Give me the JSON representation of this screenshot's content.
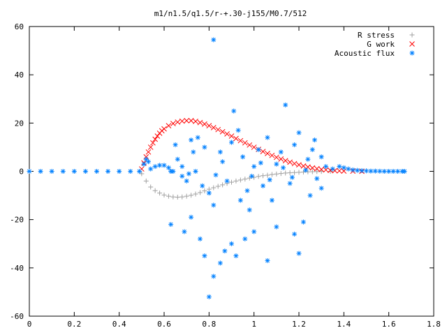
{
  "chart_data": {
    "type": "scatter",
    "title": "m1/n1.5/q1.5/r-+.30-j155/M0.7/512",
    "xlabel": "",
    "ylabel": "",
    "xlim": [
      0,
      1.8
    ],
    "ylim": [
      -60,
      60
    ],
    "xticks": [
      0,
      0.2,
      0.4,
      0.6,
      0.8,
      1,
      1.2,
      1.4,
      1.6,
      1.8
    ],
    "yticks": [
      -60,
      -40,
      -20,
      0,
      20,
      40,
      60
    ],
    "xtick_labels": [
      "0",
      "0.2",
      "0.4",
      "0.6",
      "0.8",
      "1",
      "1.2",
      "1.4",
      "1.6",
      "1.8"
    ],
    "ytick_labels": [
      "-60",
      "-40",
      "-20",
      "0",
      "20",
      "40",
      "60"
    ],
    "grid": false,
    "legend_position": "top-right",
    "series": [
      {
        "name": "R stress",
        "marker": "+",
        "color": "#a0a0a0",
        "points": [
          [
            0.5,
            -1.0
          ],
          [
            0.52,
            -4.0
          ],
          [
            0.54,
            -6.5
          ],
          [
            0.56,
            -8.0
          ],
          [
            0.58,
            -9.0
          ],
          [
            0.6,
            -9.8
          ],
          [
            0.62,
            -10.3
          ],
          [
            0.64,
            -10.6
          ],
          [
            0.66,
            -10.7
          ],
          [
            0.68,
            -10.6
          ],
          [
            0.7,
            -10.3
          ],
          [
            0.72,
            -9.9
          ],
          [
            0.74,
            -9.4
          ],
          [
            0.76,
            -8.8
          ],
          [
            0.78,
            -8.1
          ],
          [
            0.8,
            -7.4
          ],
          [
            0.82,
            -6.8
          ],
          [
            0.84,
            -6.2
          ],
          [
            0.86,
            -5.6
          ],
          [
            0.88,
            -5.0
          ],
          [
            0.9,
            -4.5
          ],
          [
            0.92,
            -4.0
          ],
          [
            0.94,
            -3.6
          ],
          [
            0.96,
            -3.2
          ],
          [
            0.98,
            -2.8
          ],
          [
            1.0,
            -2.5
          ],
          [
            1.02,
            -2.1
          ],
          [
            1.04,
            -1.8
          ],
          [
            1.06,
            -1.6
          ],
          [
            1.08,
            -1.3
          ],
          [
            1.1,
            -1.1
          ],
          [
            1.12,
            -0.9
          ],
          [
            1.14,
            -0.7
          ],
          [
            1.16,
            -0.6
          ],
          [
            1.18,
            -0.5
          ],
          [
            1.2,
            -0.4
          ],
          [
            1.22,
            -0.3
          ],
          [
            1.24,
            -0.2
          ],
          [
            1.26,
            -0.15
          ],
          [
            1.28,
            -0.1
          ],
          [
            1.3,
            -0.05
          ],
          [
            1.34,
            0.0
          ]
        ]
      },
      {
        "name": "G work",
        "marker": "x",
        "color": "#ff0000",
        "points": [
          [
            0.5,
            1.0
          ],
          [
            0.51,
            3.5
          ],
          [
            0.52,
            6.0
          ],
          [
            0.53,
            8.0
          ],
          [
            0.54,
            10.0
          ],
          [
            0.55,
            11.8
          ],
          [
            0.56,
            13.3
          ],
          [
            0.57,
            14.6
          ],
          [
            0.58,
            15.8
          ],
          [
            0.59,
            16.8
          ],
          [
            0.6,
            17.6
          ],
          [
            0.62,
            18.9
          ],
          [
            0.64,
            19.8
          ],
          [
            0.66,
            20.4
          ],
          [
            0.68,
            20.8
          ],
          [
            0.7,
            21.0
          ],
          [
            0.72,
            21.0
          ],
          [
            0.74,
            20.7
          ],
          [
            0.76,
            20.2
          ],
          [
            0.78,
            19.6
          ],
          [
            0.8,
            18.9
          ],
          [
            0.82,
            18.1
          ],
          [
            0.84,
            17.3
          ],
          [
            0.86,
            16.4
          ],
          [
            0.88,
            15.5
          ],
          [
            0.9,
            14.6
          ],
          [
            0.92,
            13.6
          ],
          [
            0.94,
            12.7
          ],
          [
            0.96,
            11.8
          ],
          [
            0.98,
            10.9
          ],
          [
            1.0,
            10.0
          ],
          [
            1.02,
            9.1
          ],
          [
            1.04,
            8.2
          ],
          [
            1.06,
            7.4
          ],
          [
            1.08,
            6.6
          ],
          [
            1.1,
            5.8
          ],
          [
            1.12,
            5.1
          ],
          [
            1.14,
            4.4
          ],
          [
            1.16,
            3.8
          ],
          [
            1.18,
            3.2
          ],
          [
            1.2,
            2.7
          ],
          [
            1.22,
            2.2
          ],
          [
            1.24,
            1.8
          ],
          [
            1.26,
            1.4
          ],
          [
            1.28,
            1.1
          ],
          [
            1.3,
            0.8
          ],
          [
            1.32,
            0.6
          ],
          [
            1.34,
            0.4
          ],
          [
            1.36,
            0.3
          ],
          [
            1.38,
            0.2
          ],
          [
            1.4,
            0.1
          ],
          [
            1.44,
            0.05
          ],
          [
            1.48,
            0.0
          ]
        ]
      },
      {
        "name": "Acoustic flux",
        "marker": "*",
        "color": "#0080ff",
        "points": [
          [
            0.0,
            0.0
          ],
          [
            0.05,
            0.0
          ],
          [
            0.1,
            0.0
          ],
          [
            0.15,
            0.0
          ],
          [
            0.2,
            0.0
          ],
          [
            0.25,
            0.0
          ],
          [
            0.3,
            0.0
          ],
          [
            0.35,
            0.0
          ],
          [
            0.4,
            0.0
          ],
          [
            0.45,
            0.0
          ],
          [
            0.49,
            0.0
          ],
          [
            0.51,
            3.0
          ],
          [
            0.52,
            5.0
          ],
          [
            0.53,
            4.0
          ],
          [
            0.54,
            1.0
          ],
          [
            0.56,
            2.0
          ],
          [
            0.58,
            2.5
          ],
          [
            0.6,
            2.5
          ],
          [
            0.62,
            1.5
          ],
          [
            0.63,
            0.0
          ],
          [
            0.82,
            54.5
          ],
          [
            0.65,
            11.0
          ],
          [
            0.66,
            5.0
          ],
          [
            0.68,
            -2.0
          ],
          [
            0.7,
            -4.0
          ],
          [
            0.72,
            13.0
          ],
          [
            0.73,
            8.0
          ],
          [
            0.75,
            14.0
          ],
          [
            0.77,
            -6.0
          ],
          [
            0.78,
            10.0
          ],
          [
            0.8,
            -9.0
          ],
          [
            0.82,
            -14.0
          ],
          [
            0.85,
            8.0
          ],
          [
            0.88,
            -4.0
          ],
          [
            0.9,
            12.0
          ],
          [
            0.91,
            25.0
          ],
          [
            0.93,
            17.0
          ],
          [
            0.95,
            6.0
          ],
          [
            0.97,
            -8.0
          ],
          [
            1.0,
            2.0
          ],
          [
            1.02,
            9.0
          ],
          [
            1.04,
            -6.0
          ],
          [
            1.06,
            14.0
          ],
          [
            1.08,
            -12.0
          ],
          [
            1.1,
            3.0
          ],
          [
            1.12,
            8.0
          ],
          [
            1.14,
            27.5
          ],
          [
            1.16,
            -5.0
          ],
          [
            1.18,
            11.0
          ],
          [
            1.2,
            16.0
          ],
          [
            1.22,
            -21.0
          ],
          [
            1.24,
            5.0
          ],
          [
            1.26,
            9.0
          ],
          [
            1.28,
            -3.0
          ],
          [
            1.3,
            6.0
          ],
          [
            1.32,
            2.0
          ],
          [
            0.63,
            -22.0
          ],
          [
            0.69,
            -25.0
          ],
          [
            0.72,
            -19.0
          ],
          [
            0.76,
            -28.0
          ],
          [
            0.78,
            -35.0
          ],
          [
            0.82,
            -43.5
          ],
          [
            0.8,
            -52.0
          ],
          [
            0.85,
            -38.0
          ],
          [
            0.87,
            -33.0
          ],
          [
            0.9,
            -30.0
          ],
          [
            0.92,
            -35.0
          ],
          [
            0.96,
            -28.0
          ],
          [
            1.0,
            -25.0
          ],
          [
            1.06,
            -37.0
          ],
          [
            1.1,
            -23.0
          ],
          [
            1.18,
            -26.0
          ],
          [
            1.2,
            -34.0
          ],
          [
            0.98,
            -16.0
          ],
          [
            0.94,
            -12.0
          ],
          [
            1.25,
            -10.0
          ],
          [
            1.3,
            -7.0
          ],
          [
            1.27,
            13.0
          ],
          [
            0.64,
            0.0
          ],
          [
            0.68,
            2.0
          ],
          [
            0.71,
            -1.0
          ],
          [
            0.74,
            0.0
          ],
          [
            0.83,
            -1.5
          ],
          [
            0.86,
            4.0
          ],
          [
            0.99,
            -2.0
          ],
          [
            1.03,
            3.5
          ],
          [
            1.07,
            -3.5
          ],
          [
            1.13,
            1.5
          ],
          [
            1.17,
            -2.5
          ],
          [
            1.23,
            0.5
          ],
          [
            1.35,
            1.0
          ],
          [
            1.38,
            2.0
          ],
          [
            1.4,
            1.5
          ],
          [
            1.42,
            1.0
          ],
          [
            1.44,
            0.6
          ],
          [
            1.46,
            0.4
          ],
          [
            1.48,
            0.3
          ],
          [
            1.5,
            0.2
          ],
          [
            1.52,
            0.1
          ],
          [
            1.54,
            0.1
          ],
          [
            1.56,
            0.05
          ],
          [
            1.58,
            0.0
          ],
          [
            1.6,
            0.0
          ],
          [
            1.62,
            0.0
          ],
          [
            1.64,
            0.0
          ],
          [
            1.66,
            0.0
          ],
          [
            1.67,
            0.0
          ]
        ]
      }
    ]
  }
}
